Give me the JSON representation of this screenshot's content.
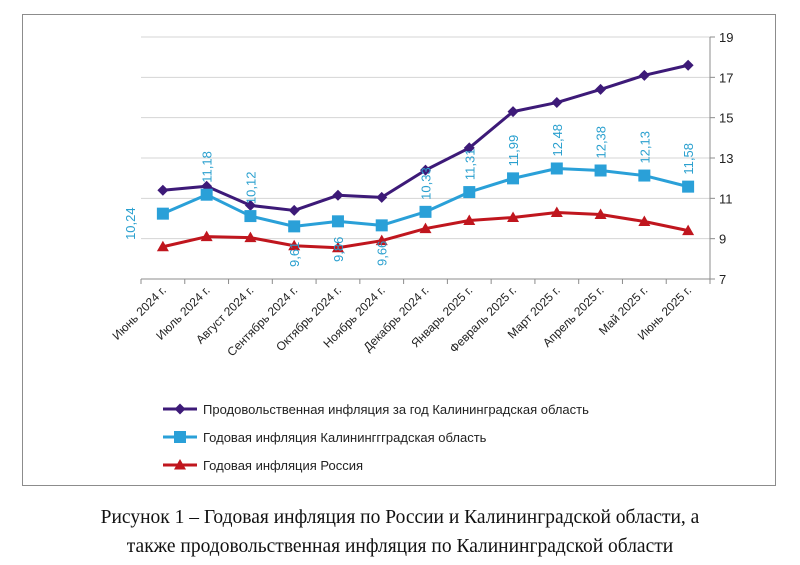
{
  "chart_data": {
    "type": "line",
    "categories": [
      "Июнь 2024 г.",
      "Июль 2024 г.",
      "Август 2024 г.",
      "Сентябрь 2024 г.",
      "Октябрь 2024 г.",
      "Ноябрь 2024 г.",
      "Декабрь 2024 г.",
      "Январь 2025 г.",
      "Февраль 2025 г.",
      "Март 2025 г.",
      "Апрель 2025 г.",
      "Май 2025 г.",
      "Июнь 2025 г."
    ],
    "series": [
      {
        "name": "Продовольственная инфляция за год Калининградская область",
        "color": "#3d1a78",
        "marker": "diamond",
        "values": [
          11.4,
          11.6,
          10.65,
          10.4,
          11.15,
          11.05,
          12.4,
          13.5,
          15.3,
          15.75,
          16.4,
          17.1,
          17.6
        ]
      },
      {
        "name": "Годовая инфляция Калининггградская область",
        "color": "#2aa0d8",
        "marker": "square",
        "values": [
          10.24,
          11.18,
          10.12,
          9.61,
          9.86,
          9.66,
          10.33,
          11.31,
          11.99,
          12.48,
          12.38,
          12.13,
          11.58
        ],
        "data_labels": [
          "10,24",
          "11,18",
          "10,12",
          "9,61",
          "9,86",
          "9,66",
          "10,33",
          "11,31",
          "11,99",
          "12,48",
          "12,38",
          "12,13",
          "11,58"
        ]
      },
      {
        "name": "Годовая инфляция Россия",
        "color": "#c0161e",
        "marker": "triangle",
        "values": [
          8.6,
          9.1,
          9.05,
          8.65,
          8.55,
          8.9,
          9.5,
          9.9,
          10.05,
          10.3,
          10.2,
          9.85,
          9.4
        ]
      }
    ],
    "ylim": [
      7,
      19
    ],
    "yticks": [
      7,
      9,
      11,
      13,
      15,
      17,
      19
    ],
    "yaxis_position": "right",
    "grid": true,
    "legend_position": "bottom-left"
  },
  "caption": {
    "line1": "Рисунок 1 – Годовая инфляция по России и Калининградской области, а",
    "line2": "также продовольственная инфляция по Калининградской области"
  }
}
